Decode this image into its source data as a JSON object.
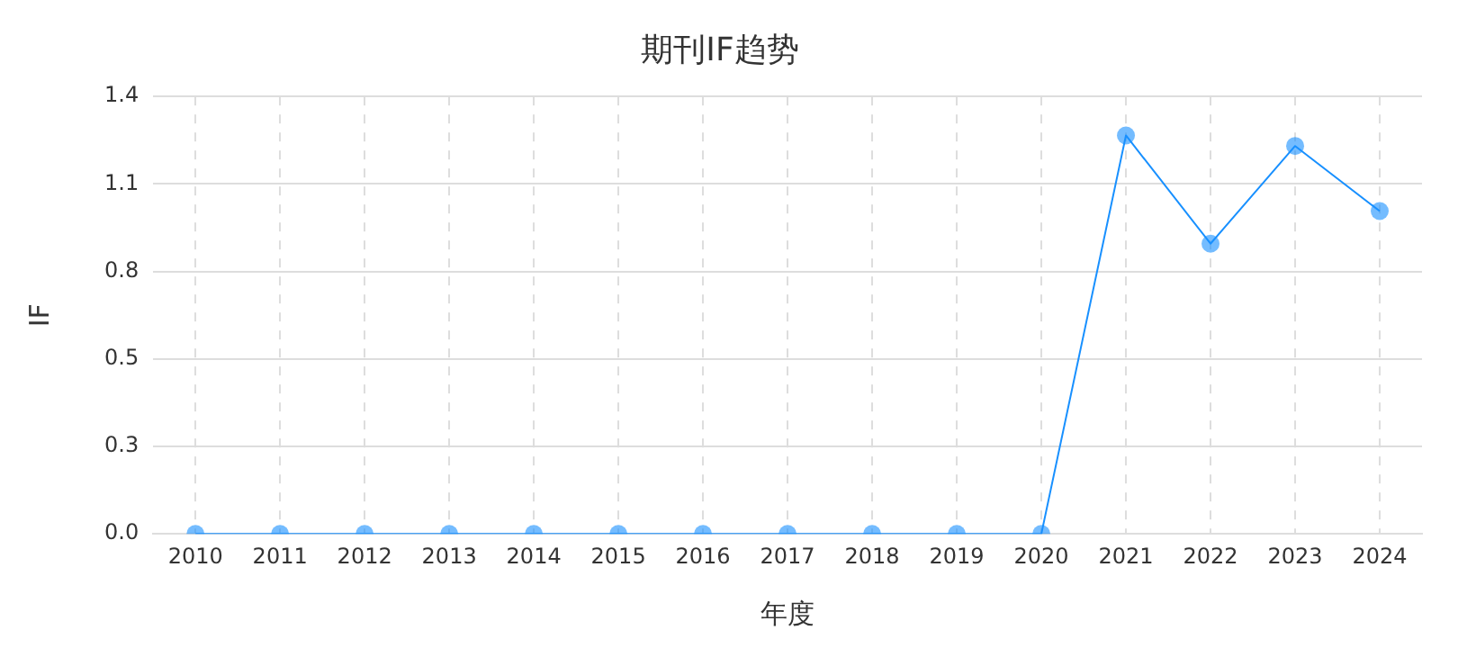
{
  "chart_data": {
    "type": "line",
    "title": "期刊IF趋势",
    "xlabel": "年度",
    "ylabel": "IF",
    "categories": [
      "2010",
      "2011",
      "2012",
      "2013",
      "2014",
      "2015",
      "2016",
      "2017",
      "2018",
      "2019",
      "2020",
      "2021",
      "2022",
      "2023",
      "2024"
    ],
    "series": [
      {
        "color": "#1890ff",
        "values": [
          0,
          0,
          0,
          0,
          0,
          0,
          0,
          0,
          0,
          0,
          0,
          1.248,
          0.909,
          1.215,
          1.011
        ]
      }
    ],
    "ylim": [
      0,
      1.37
    ],
    "yticks": [
      {
        "value": 0,
        "label": "0.0"
      },
      {
        "value": 0.274,
        "label": "0.3"
      },
      {
        "value": 0.548,
        "label": "0.5"
      },
      {
        "value": 0.822,
        "label": "0.8"
      },
      {
        "value": 1.096,
        "label": "1.1"
      },
      {
        "value": 1.37,
        "label": "1.4"
      }
    ],
    "grid": true,
    "marker": "circle",
    "line_style": "solid",
    "legend": false
  }
}
